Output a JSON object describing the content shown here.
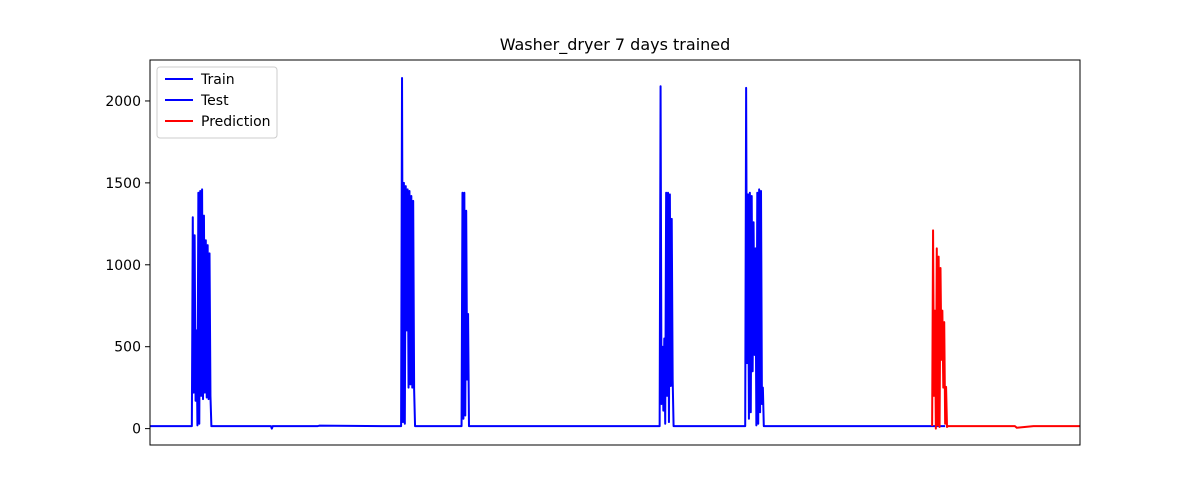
{
  "chart_data": {
    "type": "line",
    "title": "Washer_dryer 7 days trained",
    "xlabel": "",
    "ylabel": "",
    "xlim": [
      0,
      1000
    ],
    "ylim": [
      -100,
      2250
    ],
    "yticks": [
      0,
      500,
      1000,
      1500,
      2000
    ],
    "ytick_labels": [
      "0",
      "500",
      "1000",
      "1500",
      "2000"
    ],
    "x_ticks_visible": false,
    "grid": false,
    "legend": {
      "placement": "top-left",
      "entries": [
        {
          "label": "Train",
          "color": "#0000ff"
        },
        {
          "label": "Test",
          "color": "#0000ff"
        },
        {
          "label": "Prediction",
          "color": "#ff0000"
        }
      ]
    },
    "series": [
      {
        "name": "Train",
        "color": "#0000ff",
        "x": [
          0,
          45,
          46,
          47,
          48,
          49,
          50,
          51,
          52,
          53,
          54,
          55,
          56,
          57,
          58,
          59,
          60,
          61,
          62,
          63,
          64,
          65,
          66,
          100,
          130,
          131,
          132,
          180,
          182,
          260,
          262,
          270,
          271,
          272,
          273,
          274,
          275,
          276,
          277,
          278,
          279,
          280,
          281,
          282,
          283,
          284,
          285,
          286,
          287,
          288,
          289,
          290,
          291,
          300,
          335,
          336,
          337,
          338,
          339,
          340,
          341,
          342,
          343,
          344,
          345,
          400,
          445,
          447,
          500,
          548,
          549,
          550,
          551,
          552,
          553,
          554,
          555,
          556,
          557,
          558,
          559,
          560,
          561,
          562,
          563,
          564,
          565,
          566,
          567,
          600,
          640,
          641,
          642,
          643,
          644,
          645,
          646,
          647,
          648,
          649,
          650,
          651,
          652,
          653,
          654,
          655,
          656,
          657,
          658,
          659,
          660,
          661,
          662,
          700,
          760,
          800,
          840,
          855
        ],
        "y": [
          15,
          15,
          1290,
          220,
          1180,
          170,
          600,
          20,
          1440,
          30,
          1450,
          200,
          1460,
          180,
          1300,
          220,
          1150,
          190,
          1120,
          180,
          1070,
          200,
          15,
          15,
          15,
          0,
          15,
          15,
          18,
          15,
          15,
          15,
          2140,
          40,
          1500,
          30,
          1480,
          600,
          1460,
          250,
          1450,
          270,
          1420,
          250,
          1390,
          240,
          15,
          15,
          15,
          15,
          15,
          15,
          15,
          15,
          15,
          1440,
          60,
          1440,
          80,
          1330,
          300,
          700,
          15,
          15,
          15,
          15,
          15,
          15,
          15,
          15,
          2090,
          150,
          500,
          110,
          550,
          30,
          1440,
          200,
          1440,
          40,
          1430,
          260,
          1280,
          300,
          15,
          15,
          15,
          15,
          15,
          15,
          15,
          2080,
          400,
          1430,
          60,
          1440,
          100,
          1420,
          350,
          1260,
          450,
          1100,
          20,
          1440,
          30,
          1460,
          100,
          1450,
          150,
          250,
          15,
          15,
          15,
          15,
          15,
          15,
          15,
          15
        ]
      },
      {
        "name": "Prediction",
        "color": "#ff0000",
        "x": [
          841,
          842,
          843,
          844,
          845,
          846,
          847,
          848,
          849,
          850,
          851,
          852,
          853,
          854,
          855,
          856,
          857,
          858,
          859,
          860,
          900,
          930,
          932,
          950,
          1000
        ],
        "y": [
          15,
          1210,
          200,
          720,
          0,
          1100,
          20,
          1050,
          10,
          980,
          420,
          720,
          250,
          650,
          30,
          255,
          10,
          15,
          15,
          15,
          15,
          15,
          5,
          15,
          15
        ]
      }
    ]
  }
}
